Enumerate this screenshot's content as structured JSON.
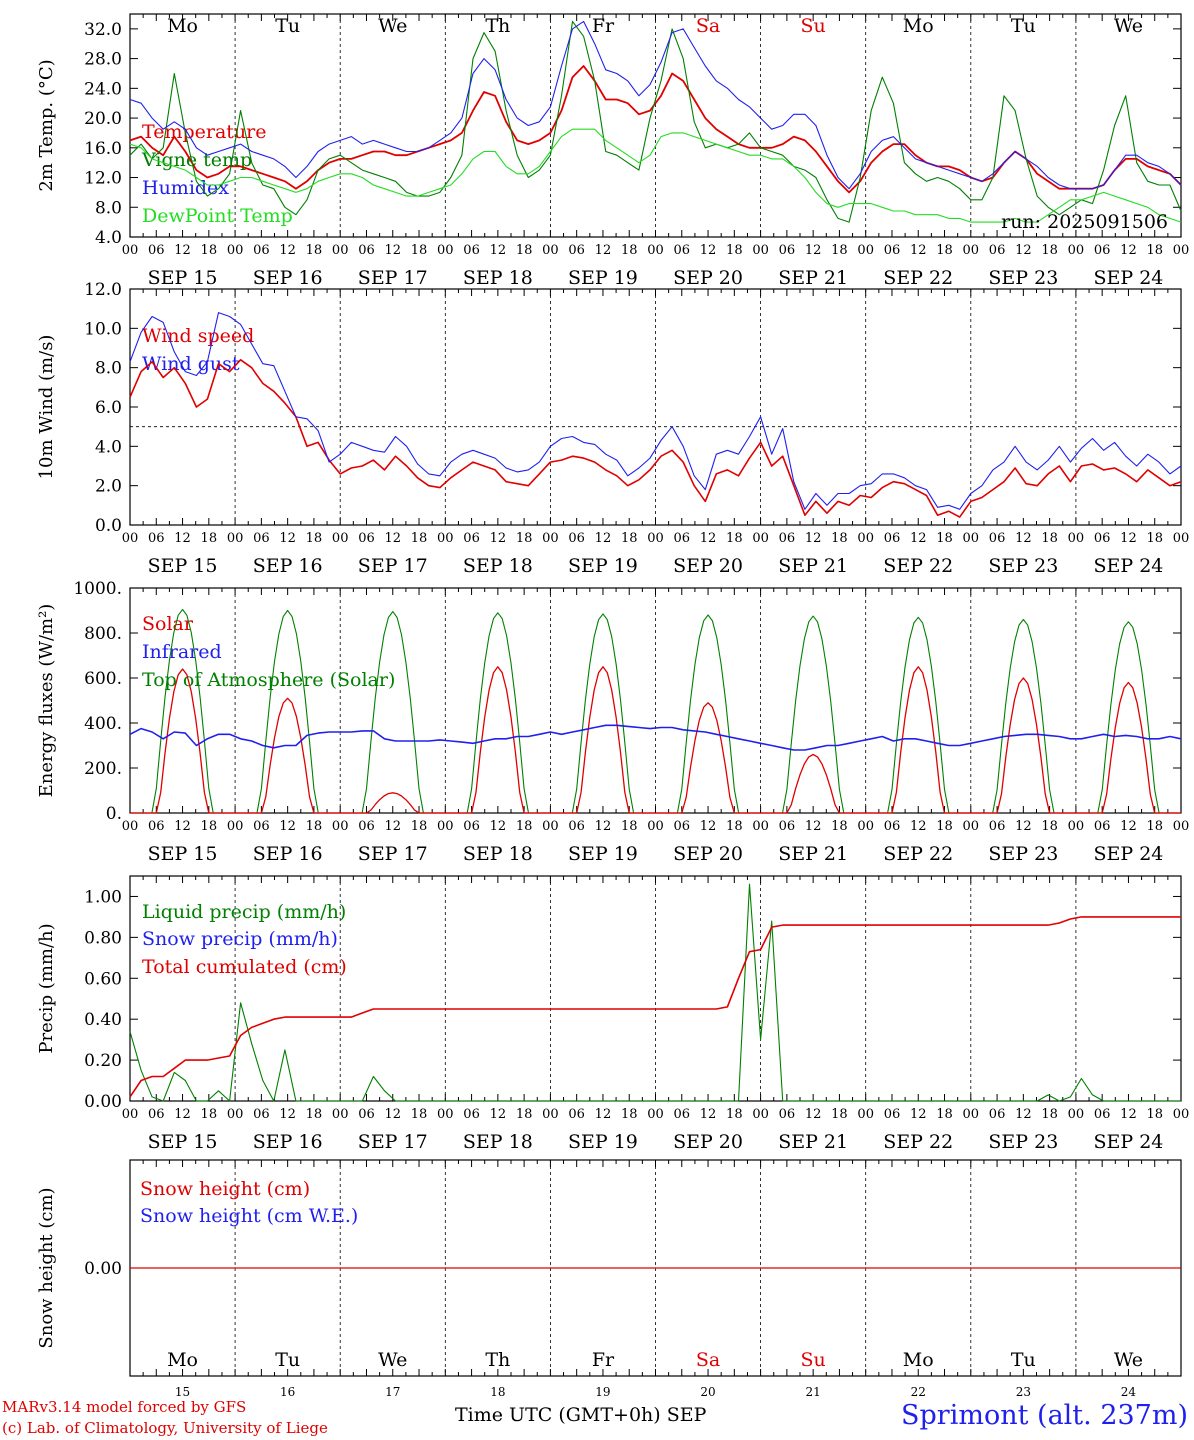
{
  "chart_data": [
    {
      "type": "line",
      "ylabel": "2m Temp. (°C)",
      "yticks": [
        "32.0",
        "28.0",
        "24.0",
        "20.0",
        "16.0",
        "12.0",
        "8.0",
        "4.0"
      ],
      "ylim": [
        4,
        34
      ],
      "annotation": "run: 2025091506",
      "legend_items": [
        {
          "label": "Temperature",
          "color": "#e00000"
        },
        {
          "label": "Vigne temp",
          "color": "#008000"
        },
        {
          "label": "Humidex",
          "color": "#2020ee"
        },
        {
          "label": "DewPoint Temp",
          "color": "#22dd22"
        }
      ],
      "series": [
        {
          "name": "Temperature",
          "color": "#e00000",
          "values": [
            17.0,
            17.5,
            16.0,
            15.0,
            17.5,
            15.5,
            13.0,
            12.0,
            12.5,
            13.5,
            13.5,
            13.0,
            12.5,
            12.0,
            11.5,
            10.5,
            11.5,
            13.0,
            14.0,
            14.5,
            14.5,
            15.0,
            15.5,
            15.5,
            15.0,
            15.0,
            15.5,
            16.0,
            16.5,
            17.0,
            18.0,
            21.0,
            23.5,
            23.0,
            19.5,
            17.0,
            16.5,
            17.0,
            18.0,
            21.0,
            25.5,
            27.0,
            25.0,
            22.5,
            22.5,
            22.0,
            20.5,
            21.0,
            23.0,
            26.0,
            25.0,
            22.5,
            20.0,
            18.5,
            17.5,
            16.5,
            16.0,
            16.0,
            16.0,
            16.5,
            17.5,
            17.0,
            15.5,
            13.5,
            11.5,
            10.0,
            11.5,
            14.0,
            15.5,
            16.5,
            16.5,
            15.0,
            14.0,
            13.5,
            13.5,
            13.0,
            12.0,
            11.5,
            12.0,
            14.0,
            15.5,
            14.5,
            12.5,
            11.5,
            10.5,
            10.5,
            10.5,
            10.5,
            11.0,
            13.0,
            14.5,
            14.5,
            13.5,
            13.0,
            12.5,
            11.0
          ]
        },
        {
          "name": "Vigne temp",
          "color": "#008000",
          "values": [
            15.0,
            16.5,
            14.5,
            16.0,
            26.0,
            18.0,
            11.5,
            9.5,
            10.5,
            12.5,
            21.0,
            14.0,
            11.0,
            10.5,
            8.0,
            7.0,
            9.0,
            13.0,
            14.5,
            15.0,
            14.0,
            13.0,
            12.5,
            12.0,
            11.5,
            10.0,
            9.5,
            9.5,
            10.0,
            12.0,
            15.0,
            28.0,
            31.5,
            29.0,
            21.0,
            15.0,
            12.0,
            13.0,
            15.0,
            23.0,
            33.0,
            31.0,
            25.0,
            15.5,
            15.0,
            14.0,
            13.0,
            20.0,
            25.0,
            32.0,
            28.0,
            19.5,
            16.0,
            16.5,
            16.0,
            16.5,
            18.0,
            16.0,
            15.5,
            15.0,
            13.5,
            13.0,
            12.0,
            9.0,
            6.5,
            6.0,
            12.0,
            21.0,
            25.5,
            22.0,
            14.0,
            12.5,
            11.5,
            12.0,
            11.5,
            10.5,
            9.0,
            9.0,
            12.0,
            23.0,
            21.0,
            14.5,
            9.5,
            8.0,
            7.0,
            8.0,
            9.0,
            8.5,
            13.0,
            19.0,
            23.0,
            14.0,
            11.5,
            11.0,
            11.0,
            7.5
          ]
        },
        {
          "name": "Humidex",
          "color": "#2020ee",
          "values": [
            22.5,
            22.0,
            20.0,
            18.5,
            19.5,
            18.5,
            16.0,
            15.0,
            15.5,
            16.0,
            16.5,
            15.5,
            15.0,
            14.5,
            13.5,
            12.0,
            13.5,
            15.5,
            16.5,
            17.0,
            17.5,
            16.5,
            17.0,
            16.5,
            16.0,
            15.5,
            15.5,
            16.0,
            17.0,
            18.0,
            20.0,
            26.0,
            28.0,
            26.5,
            22.5,
            20.0,
            19.0,
            19.5,
            21.5,
            27.0,
            32.0,
            33.0,
            30.0,
            26.5,
            26.0,
            25.0,
            23.0,
            24.5,
            27.5,
            31.5,
            32.0,
            29.5,
            27.0,
            25.0,
            24.0,
            22.5,
            21.5,
            20.0,
            18.5,
            19.0,
            20.5,
            20.5,
            19.0,
            15.0,
            12.0,
            10.5,
            12.5,
            15.5,
            17.0,
            17.5,
            16.0,
            14.5,
            14.0,
            13.5,
            13.0,
            12.5,
            12.0,
            11.5,
            12.5,
            14.0,
            15.5,
            14.5,
            13.5,
            12.0,
            11.0,
            10.5,
            10.5,
            10.5,
            11.0,
            13.0,
            15.0,
            15.0,
            14.0,
            13.5,
            12.5,
            11.0
          ]
        },
        {
          "name": "DewPoint Temp",
          "color": "#22dd22",
          "values": [
            16.5,
            16.0,
            14.5,
            14.0,
            13.5,
            13.0,
            12.0,
            11.0,
            11.0,
            11.5,
            12.0,
            12.0,
            11.5,
            11.0,
            10.5,
            10.0,
            10.5,
            11.5,
            12.0,
            12.5,
            12.5,
            12.0,
            11.0,
            10.5,
            10.0,
            9.5,
            9.5,
            10.0,
            10.5,
            11.0,
            12.5,
            14.5,
            15.5,
            15.5,
            13.5,
            12.5,
            12.5,
            13.5,
            15.5,
            17.5,
            18.5,
            18.5,
            18.5,
            17.0,
            16.0,
            15.0,
            14.0,
            15.0,
            17.5,
            18.0,
            18.0,
            17.5,
            17.0,
            16.5,
            16.0,
            15.5,
            15.0,
            15.0,
            14.5,
            14.5,
            13.5,
            12.0,
            10.0,
            8.5,
            8.0,
            8.5,
            8.5,
            8.5,
            8.0,
            7.5,
            7.5,
            7.0,
            7.0,
            7.0,
            6.5,
            6.5,
            6.0,
            6.0,
            6.0,
            6.0,
            6.5,
            6.0,
            6.0,
            7.0,
            8.0,
            9.0,
            9.0,
            9.5,
            10.0,
            9.5,
            9.0,
            8.5,
            8.0,
            7.0,
            6.5,
            6.0
          ]
        }
      ]
    },
    {
      "type": "line",
      "ylabel": "10m Wind (m/s)",
      "yticks": [
        "12.0",
        "10.0",
        "8.0",
        "6.0",
        "4.0",
        "2.0",
        "0.0"
      ],
      "ylim": [
        0,
        12
      ],
      "reference_line": 5.0,
      "legend_items": [
        {
          "label": "Wind speed",
          "color": "#e00000"
        },
        {
          "label": "Wind gust",
          "color": "#2020ee"
        }
      ],
      "series": [
        {
          "name": "Wind speed",
          "color": "#e00000",
          "values": [
            6.5,
            7.8,
            8.3,
            7.5,
            8.0,
            7.2,
            6.0,
            6.4,
            8.2,
            7.8,
            8.4,
            8.0,
            7.2,
            6.8,
            6.2,
            5.5,
            4.0,
            4.2,
            3.3,
            2.6,
            2.9,
            3.0,
            3.3,
            2.8,
            3.5,
            3.0,
            2.4,
            2.0,
            1.9,
            2.4,
            2.8,
            3.2,
            3.0,
            2.8,
            2.2,
            2.1,
            2.0,
            2.6,
            3.2,
            3.3,
            3.5,
            3.4,
            3.2,
            2.8,
            2.5,
            2.0,
            2.3,
            2.8,
            3.5,
            3.8,
            3.2,
            2.0,
            1.2,
            2.6,
            2.8,
            2.5,
            3.4,
            4.2,
            3.0,
            3.5,
            2.0,
            0.5,
            1.2,
            0.6,
            1.2,
            1.0,
            1.5,
            1.4,
            1.9,
            2.2,
            2.1,
            1.8,
            1.5,
            0.5,
            0.7,
            0.4,
            1.2,
            1.4,
            1.8,
            2.2,
            2.9,
            2.1,
            2.0,
            2.6,
            3.0,
            2.2,
            3.0,
            3.1,
            2.8,
            2.9,
            2.6,
            2.2,
            2.8,
            2.4,
            2.0,
            2.2
          ]
        },
        {
          "name": "Wind gust",
          "color": "#2020ee",
          "values": [
            8.3,
            9.8,
            10.6,
            10.3,
            8.8,
            7.8,
            7.6,
            8.3,
            10.8,
            10.6,
            10.2,
            9.2,
            8.2,
            8.1,
            6.8,
            5.5,
            5.4,
            4.8,
            3.2,
            3.6,
            4.2,
            4.0,
            3.8,
            3.7,
            4.5,
            4.0,
            3.1,
            2.6,
            2.5,
            3.2,
            3.6,
            3.8,
            3.6,
            3.4,
            2.9,
            2.7,
            2.8,
            3.2,
            4.0,
            4.4,
            4.5,
            4.2,
            4.1,
            3.6,
            3.3,
            2.5,
            2.9,
            3.4,
            4.3,
            5.0,
            4.0,
            2.5,
            1.8,
            3.6,
            3.8,
            3.6,
            4.5,
            5.5,
            3.6,
            4.9,
            2.2,
            0.8,
            1.6,
            1.0,
            1.6,
            1.6,
            2.0,
            2.1,
            2.6,
            2.6,
            2.4,
            2.0,
            1.8,
            0.9,
            1.0,
            0.8,
            1.6,
            2.0,
            2.8,
            3.2,
            4.0,
            3.2,
            2.8,
            3.3,
            4.0,
            3.2,
            3.9,
            4.4,
            3.8,
            4.2,
            3.5,
            3.0,
            3.6,
            3.2,
            2.6,
            3.0
          ]
        }
      ]
    },
    {
      "type": "line",
      "ylabel": "Energy fluxes (W/m²)",
      "yticks": [
        "1000.",
        "800.",
        "600.",
        "400.",
        "200.",
        "0."
      ],
      "ylim": [
        0,
        1000
      ],
      "legend_items": [
        {
          "label": "Solar",
          "color": "#e00000"
        },
        {
          "label": "Infrared",
          "color": "#2020ee"
        },
        {
          "label": "Top of Atmosphere (Solar)",
          "color": "#008000"
        }
      ],
      "daily_peaks": {
        "toa": [
          905,
          900,
          895,
          890,
          885,
          880,
          875,
          870,
          860,
          850
        ],
        "solar": [
          640,
          510,
          90,
          650,
          650,
          490,
          260,
          650,
          600,
          580
        ]
      },
      "infrared_values": [
        350,
        375,
        360,
        330,
        360,
        355,
        300,
        330,
        350,
        350,
        330,
        320,
        300,
        290,
        300,
        300,
        345,
        355,
        360,
        360,
        360,
        365,
        365,
        330,
        320,
        320,
        320,
        320,
        325,
        320,
        315,
        310,
        320,
        330,
        330,
        340,
        340,
        350,
        360,
        350,
        360,
        370,
        380,
        390,
        390,
        385,
        380,
        375,
        380,
        380,
        370,
        365,
        360,
        350,
        340,
        330,
        320,
        310,
        300,
        290,
        280,
        280,
        290,
        300,
        300,
        310,
        320,
        330,
        340,
        320,
        330,
        330,
        320,
        310,
        300,
        300,
        310,
        320,
        330,
        340,
        345,
        350,
        350,
        345,
        340,
        330,
        330,
        340,
        350,
        340,
        345,
        340,
        330,
        330,
        340,
        330
      ]
    },
    {
      "type": "line",
      "ylabel": "Precip (mm/h)",
      "yticks": [
        "1.00",
        "0.80",
        "0.60",
        "0.40",
        "0.20",
        "0.00"
      ],
      "ylim": [
        0,
        1.1
      ],
      "legend_items": [
        {
          "label": "Liquid precip (mm/h)",
          "color": "#008000"
        },
        {
          "label": "Snow precip (mm/h)",
          "color": "#2020ee"
        },
        {
          "label": "Total cumulated (cm)",
          "color": "#e00000"
        }
      ],
      "series": [
        {
          "name": "Liquid precip (mm/h)",
          "color": "#008000",
          "values": [
            0.34,
            0.15,
            0.02,
            0.0,
            0.14,
            0.1,
            0.0,
            0.0,
            0.05,
            0.0,
            0.48,
            0.28,
            0.1,
            0.0,
            0.25,
            0.0,
            0.0,
            0.0,
            0.0,
            0.0,
            0.0,
            0.0,
            0.12,
            0.05,
            0.0,
            0.0,
            0.0,
            0.0,
            0.0,
            0.0,
            0.0,
            0.0,
            0.0,
            0.0,
            0.0,
            0.0,
            0.0,
            0.0,
            0.0,
            0.0,
            0.0,
            0.0,
            0.0,
            0.0,
            0.0,
            0.0,
            0.0,
            0.0,
            0.0,
            0.0,
            0.0,
            0.0,
            0.0,
            0.0,
            0.0,
            0.0,
            1.06,
            0.3,
            0.88,
            0.0,
            0.0,
            0.0,
            0.0,
            0.0,
            0.0,
            0.0,
            0.0,
            0.0,
            0.0,
            0.0,
            0.0,
            0.0,
            0.0,
            0.0,
            0.0,
            0.0,
            0.0,
            0.0,
            0.0,
            0.0,
            0.0,
            0.0,
            0.0,
            0.03,
            0.0,
            0.02,
            0.11,
            0.03,
            0.0,
            0.0,
            0.0,
            0.0,
            0.0,
            0.0,
            0.0,
            0.0
          ]
        },
        {
          "name": "Total cumulated (cm)",
          "color": "#e00000",
          "values": [
            0.02,
            0.1,
            0.12,
            0.12,
            0.16,
            0.2,
            0.2,
            0.2,
            0.21,
            0.22,
            0.32,
            0.36,
            0.38,
            0.4,
            0.41,
            0.41,
            0.41,
            0.41,
            0.41,
            0.41,
            0.41,
            0.43,
            0.45,
            0.45,
            0.45,
            0.45,
            0.45,
            0.45,
            0.45,
            0.45,
            0.45,
            0.45,
            0.45,
            0.45,
            0.45,
            0.45,
            0.45,
            0.45,
            0.45,
            0.45,
            0.45,
            0.45,
            0.45,
            0.45,
            0.45,
            0.45,
            0.45,
            0.45,
            0.45,
            0.45,
            0.45,
            0.45,
            0.45,
            0.45,
            0.46,
            0.6,
            0.73,
            0.74,
            0.85,
            0.86,
            0.86,
            0.86,
            0.86,
            0.86,
            0.86,
            0.86,
            0.86,
            0.86,
            0.86,
            0.86,
            0.86,
            0.86,
            0.86,
            0.86,
            0.86,
            0.86,
            0.86,
            0.86,
            0.86,
            0.86,
            0.86,
            0.86,
            0.86,
            0.86,
            0.87,
            0.89,
            0.9,
            0.9,
            0.9,
            0.9,
            0.9,
            0.9,
            0.9,
            0.9,
            0.9,
            0.9
          ]
        }
      ]
    },
    {
      "type": "line",
      "ylabel": "Snow height (cm)",
      "yticks": [
        "0.00"
      ],
      "legend_items": [
        {
          "label": "Snow height (cm)",
          "color": "#e00000"
        },
        {
          "label": "Snow height (cm W.E.)",
          "color": "#2020ee"
        }
      ],
      "series": [
        {
          "name": "Snow height (cm)",
          "color": "#e00000",
          "values": [
            0.0,
            0.0
          ]
        }
      ]
    }
  ],
  "x_axis": {
    "hour_ticks": [
      "00",
      "06",
      "12",
      "18"
    ],
    "last_tick": "00",
    "date_labels": [
      "SEP 15",
      "SEP 16",
      "SEP 17",
      "SEP 18",
      "SEP 19",
      "SEP 20",
      "SEP 21",
      "SEP 22",
      "SEP 23",
      "SEP 24"
    ],
    "weekdays": [
      "Mo",
      "Tu",
      "We",
      "Th",
      "Fr",
      "Sa",
      "Su",
      "Mo",
      "Tu",
      "We"
    ],
    "weekday_colors": [
      "#000000",
      "#000000",
      "#000000",
      "#000000",
      "#000000",
      "#e00000",
      "#e00000",
      "#000000",
      "#000000",
      "#000000"
    ],
    "day_numbers": [
      "15",
      "16",
      "17",
      "18",
      "19",
      "20",
      "21",
      "22",
      "23",
      "24"
    ]
  },
  "footer": {
    "model_line": "MARv3.14 model forced by GFS",
    "copyright_line": "(c) Lab. of Climatology, University of Liege",
    "axis_title": "Time UTC (GMT+0h)",
    "month": "SEP",
    "location": "Sprimont (alt. 237m)"
  }
}
